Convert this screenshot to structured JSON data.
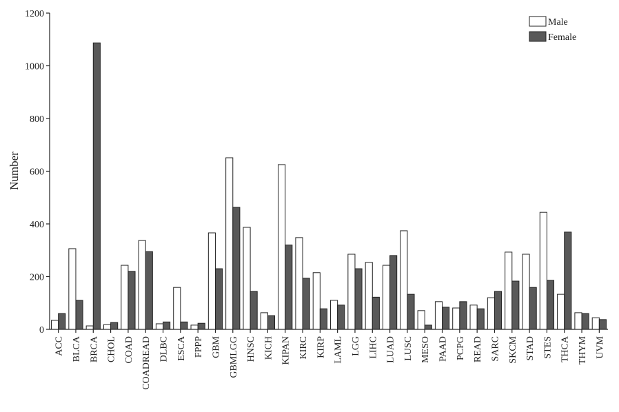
{
  "chart_data": {
    "type": "bar",
    "y_label": "Number",
    "categories": [
      "ACC",
      "BLCA",
      "BRCA",
      "CHOL",
      "COAD",
      "COADREAD",
      "DLBC",
      "ESCA",
      "FPPP",
      "GBM",
      "GBMLGG",
      "HNSC",
      "KICH",
      "KIPAN",
      "KIRC",
      "KIRP",
      "LAML",
      "LGG",
      "LIHC",
      "LUAD",
      "LUSC",
      "MESO",
      "PAAD",
      "PCPG",
      "READ",
      "SARC",
      "SKCM",
      "STAD",
      "STES",
      "THCA",
      "THYM",
      "UVM"
    ],
    "series": [
      {
        "name": "Male",
        "color": "#ffffff",
        "values": [
          34,
          306,
          13,
          18,
          243,
          337,
          21,
          159,
          16,
          366,
          651,
          387,
          63,
          625,
          348,
          215,
          110,
          285,
          254,
          243,
          374,
          71,
          105,
          81,
          92,
          120,
          293,
          285,
          444,
          133,
          63,
          44
        ]
      },
      {
        "name": "Female",
        "color": "#595959",
        "values": [
          60,
          110,
          1087,
          26,
          220,
          295,
          28,
          28,
          23,
          230,
          463,
          144,
          52,
          320,
          194,
          78,
          92,
          230,
          122,
          280,
          133,
          16,
          84,
          105,
          78,
          144,
          183,
          159,
          186,
          369,
          60,
          37
        ]
      }
    ],
    "ylim": [
      0,
      1200
    ],
    "yticks": [
      0,
      200,
      400,
      600,
      800,
      1000,
      1200
    ],
    "legend": "upper right"
  }
}
